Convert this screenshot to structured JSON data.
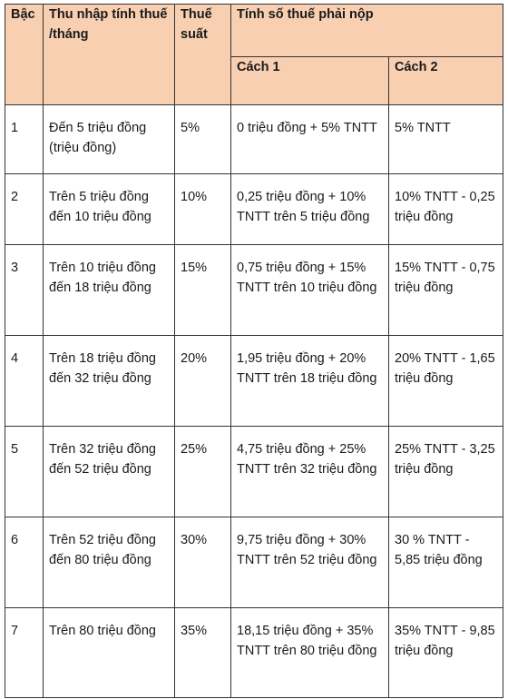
{
  "headers": {
    "bac": "Bậc",
    "thu_nhap": "Thu nhập tính thuế /tháng",
    "thue_suat": "Thuế suất",
    "tinh_so_thue": "Tính số thuế phải nộp",
    "cach1": "Cách 1",
    "cach2": "Cách 2"
  },
  "rows": [
    {
      "bac": "1",
      "thu_nhap": "Đến 5 triệu đồng (triệu đồng)",
      "thue_suat": "5%",
      "cach1": "0 triệu đồng + 5% TNTT",
      "cach2": "5% TNTT"
    },
    {
      "bac": "2",
      "thu_nhap": "Trên 5 triệu đồng đến 10 triệu đồng",
      "thue_suat": "10%",
      "cach1": "0,25 triệu đồng + 10% TNTT trên 5 triệu đồng",
      "cach2": "10% TNTT - 0,25 triệu đồng"
    },
    {
      "bac": "3",
      "thu_nhap": "Trên 10 triệu đồng đến 18 triệu đồng",
      "thue_suat": "15%",
      "cach1": "0,75 triệu đồng + 15% TNTT trên 10 triệu đồng",
      "cach2": "15% TNTT - 0,75 triệu đồng"
    },
    {
      "bac": "4",
      "thu_nhap": "Trên 18 triệu đồng đến 32 triệu đồng",
      "thue_suat": "20%",
      "cach1": "1,95 triệu đồng + 20% TNTT trên 18 triệu đồng",
      "cach2": "20% TNTT - 1,65 triệu đồng"
    },
    {
      "bac": "5",
      "thu_nhap": "Trên 32 triệu đồng đến 52 triệu đồng",
      "thue_suat": "25%",
      "cach1": "4,75 triệu đồng + 25% TNTT trên 32 triệu đồng",
      "cach2": "25% TNTT - 3,25 triệu đồng"
    },
    {
      "bac": "6",
      "thu_nhap": "Trên 52 triệu đồng đến 80 triệu đồng",
      "thue_suat": "30%",
      "cach1": "9,75 triệu đồng + 30% TNTT trên 52 triệu đồng",
      "cach2": "30 % TNTT - 5,85 triệu đồng"
    },
    {
      "bac": "7",
      "thu_nhap": "Trên 80 triệu đồng",
      "thue_suat": "35%",
      "cach1": "18,15 triệu đồng + 35% TNTT trên 80 triệu đồng",
      "cach2": "35% TNTT - 9,85 triệu đồng"
    }
  ]
}
